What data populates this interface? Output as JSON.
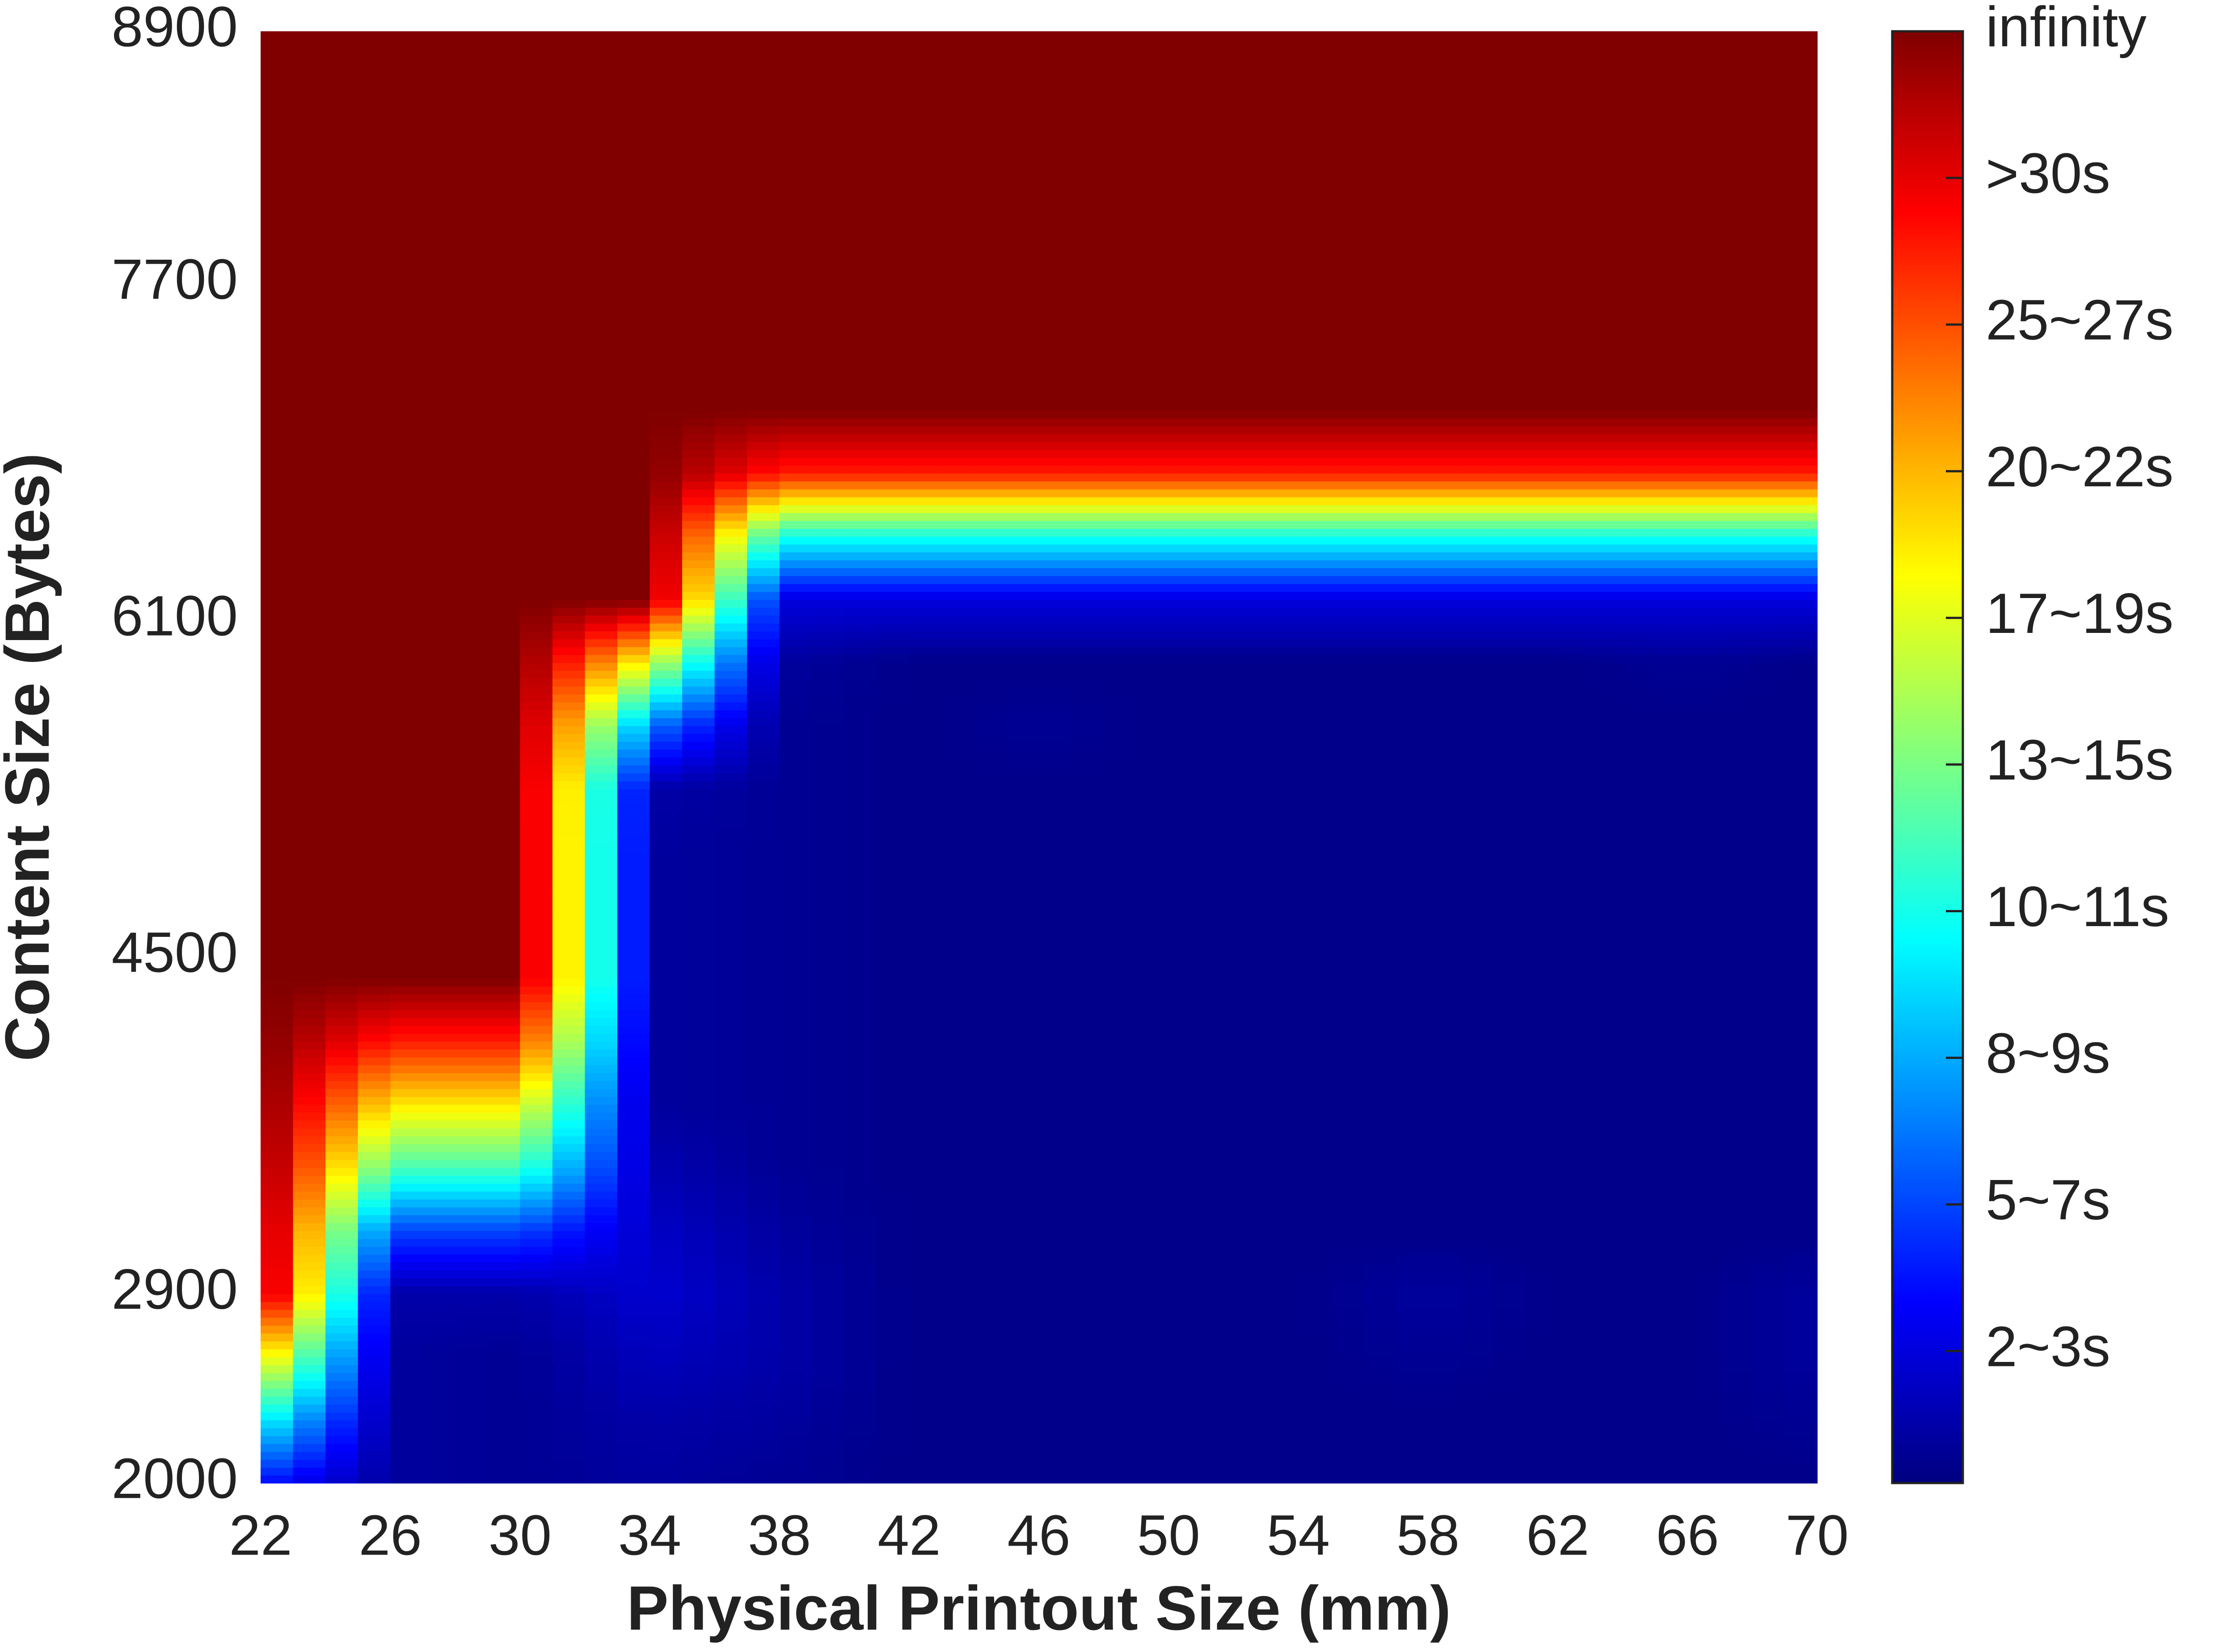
{
  "chart_data": {
    "type": "contour",
    "xlabel": "Physical Printout Size (mm)",
    "ylabel": "Content Size (Bytes)",
    "colormap": "jet",
    "x": [
      22,
      26,
      30,
      34,
      38,
      42,
      46,
      50,
      54,
      58,
      62,
      66,
      70
    ],
    "y": [
      2000,
      2300,
      2600,
      2900,
      3200,
      3500,
      3800,
      4100,
      4400,
      4700,
      5000,
      5300,
      5600,
      5900,
      6200,
      6500,
      6800,
      7100,
      7400,
      7700,
      8000,
      8300,
      8600,
      8900
    ],
    "z": [
      [
        1.5,
        0.4,
        0.3,
        0.4,
        0.3,
        0.2,
        0.2,
        0.2,
        0.2,
        0.2,
        0.2,
        0.2,
        0.2
      ],
      [
        4,
        0.4,
        0.3,
        0.5,
        0.4,
        0.2,
        0.2,
        0.2,
        0.2,
        0.2,
        0.2,
        0.2,
        0.3
      ],
      [
        7,
        0.4,
        0.3,
        0.7,
        0.5,
        0.2,
        0.2,
        0.2,
        0.2,
        0.3,
        0.2,
        0.2,
        0.4
      ],
      [
        10,
        0.5,
        0.5,
        0.9,
        0.5,
        0.2,
        0.2,
        0.2,
        0.2,
        0.4,
        0.2,
        0.2,
        0.4
      ],
      [
        10,
        2,
        2,
        0.8,
        0.4,
        0.2,
        0.2,
        0.2,
        0.2,
        0.2,
        0.2,
        0.2,
        0.2
      ],
      [
        10,
        4.5,
        4.5,
        0.6,
        0.3,
        0.2,
        0.2,
        0.2,
        0.2,
        0.2,
        0.2,
        0.2,
        0.2
      ],
      [
        10,
        6.5,
        6.5,
        0.4,
        0.3,
        0.2,
        0.2,
        0.2,
        0.2,
        0.2,
        0.2,
        0.2,
        0.2
      ],
      [
        10,
        8.5,
        8.5,
        0.4,
        0.3,
        0.2,
        0.2,
        0.2,
        0.2,
        0.2,
        0.2,
        0.2,
        0.2
      ],
      [
        10,
        10,
        10,
        0.4,
        0.3,
        0.2,
        0.2,
        0.2,
        0.2,
        0.2,
        0.2,
        0.2,
        0.2
      ],
      [
        10,
        10,
        10,
        0.4,
        0.3,
        0.2,
        0.2,
        0.2,
        0.2,
        0.2,
        0.2,
        0.2,
        0.2
      ],
      [
        10,
        10,
        10,
        0.4,
        0.3,
        0.2,
        0.2,
        0.2,
        0.2,
        0.2,
        0.2,
        0.2,
        0.2
      ],
      [
        10,
        10,
        10,
        0.5,
        0.3,
        0.2,
        0.2,
        0.2,
        0.2,
        0.2,
        0.2,
        0.2,
        0.2
      ],
      [
        10,
        10,
        10,
        2.5,
        0.3,
        0.2,
        0.3,
        0.2,
        0.2,
        0.2,
        0.2,
        0.2,
        0.2
      ],
      [
        10,
        10,
        10,
        6,
        0.4,
        0.2,
        0.2,
        0.2,
        0.2,
        0.2,
        0.2,
        0.3,
        0.2
      ],
      [
        10,
        10,
        10,
        10,
        1,
        1,
        1,
        1,
        1,
        1,
        1,
        1,
        1
      ],
      [
        10,
        10,
        10,
        10,
        4,
        4,
        4,
        4,
        4,
        4,
        4,
        4,
        4
      ],
      [
        10,
        10,
        10,
        10,
        8.5,
        8.5,
        8.5,
        8.5,
        8.5,
        8.5,
        8.5,
        8.5,
        8.5
      ],
      [
        10,
        10,
        10,
        10,
        10,
        10,
        10,
        10,
        10,
        10,
        10,
        10,
        10
      ],
      [
        10,
        10,
        10,
        10,
        10,
        10,
        10,
        10,
        10,
        10,
        10,
        10,
        10
      ],
      [
        10,
        10,
        10,
        10,
        10,
        10,
        10,
        10,
        10,
        10,
        10,
        10,
        10
      ],
      [
        10,
        10,
        10,
        10,
        10,
        10,
        10,
        10,
        10,
        10,
        10,
        10,
        10
      ],
      [
        10,
        10,
        10,
        10,
        10,
        10,
        10,
        10,
        10,
        10,
        10,
        10,
        10
      ],
      [
        10,
        10,
        10,
        10,
        10,
        10,
        10,
        10,
        10,
        10,
        10,
        10,
        10
      ],
      [
        10,
        10,
        10,
        10,
        10,
        10,
        10,
        10,
        10,
        10,
        10,
        10,
        10
      ]
    ],
    "xlim": [
      22,
      70
    ],
    "xticks": [
      22,
      26,
      30,
      34,
      38,
      42,
      46,
      50,
      54,
      58,
      62,
      66,
      70
    ],
    "ylim": [
      2000,
      8900
    ],
    "yticks": [
      2000,
      2900,
      4500,
      6100,
      7700,
      8900
    ],
    "colorbar": {
      "clim": [
        0.1,
        10
      ],
      "ticks": [
        {
          "value": 1,
          "label": "2~3s"
        },
        {
          "value": 2,
          "label": "5~7s"
        },
        {
          "value": 3,
          "label": "8~9s"
        },
        {
          "value": 4,
          "label": "10~11s"
        },
        {
          "value": 5,
          "label": "13~15s"
        },
        {
          "value": 6,
          "label": "17~19s"
        },
        {
          "value": 7,
          "label": "20~22s"
        },
        {
          "value": 8,
          "label": "25~27s"
        },
        {
          "value": 9,
          "label": ">30s"
        },
        {
          "value": 10,
          "label": "infinity"
        }
      ]
    }
  }
}
